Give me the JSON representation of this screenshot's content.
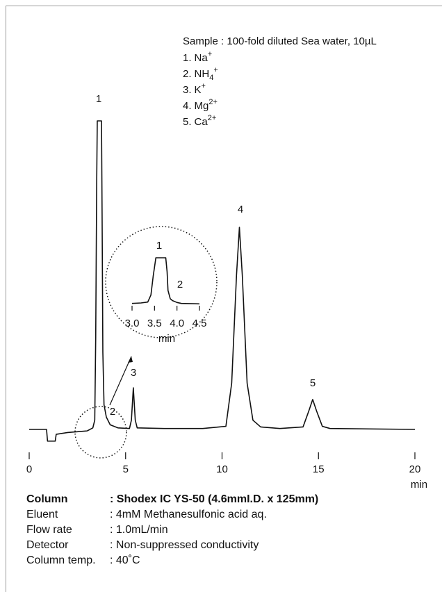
{
  "chart_data": [
    {
      "type": "line",
      "x": [
        0,
        0.9,
        0.95,
        1.35,
        1.4,
        2.0,
        3.0,
        3.3,
        3.4,
        3.45,
        3.5,
        3.53,
        3.75,
        3.78,
        3.82,
        3.88,
        4.0,
        4.2,
        4.6,
        5.2,
        5.3,
        5.4,
        5.5,
        5.6,
        7,
        9,
        10.2,
        10.5,
        10.75,
        10.9,
        11.05,
        11.3,
        11.6,
        12,
        13,
        14.2,
        14.5,
        14.7,
        14.9,
        15.2,
        15.6,
        20
      ],
      "series": [
        {
          "color": "#111111",
          "values": [
            0,
            0,
            -3.8,
            -3.8,
            -1.6,
            -1.0,
            -0.5,
            0.5,
            3,
            30,
            80,
            100,
            100,
            70,
            25,
            8,
            4,
            1.5,
            0.5,
            0.3,
            3,
            13.5,
            3,
            0.5,
            0.3,
            0.3,
            1,
            15,
            50,
            65.5,
            50,
            15,
            3,
            0.8,
            0.3,
            0.8,
            6,
            9.7,
            6,
            1,
            0.3,
            0
          ]
        }
      ],
      "xlim": [
        0,
        20
      ],
      "xticks": [
        0,
        5,
        10,
        15,
        20
      ],
      "ylim": [
        -5,
        105
      ],
      "xlabel": "min",
      "annotations": [
        "1",
        "2",
        "3",
        "4",
        "5"
      ]
    },
    {
      "type": "line",
      "x": [
        3.0,
        3.2,
        3.35,
        3.42,
        3.47,
        3.5,
        3.53,
        3.6,
        3.75,
        3.78,
        3.8,
        3.85,
        3.9,
        4.0,
        4.1,
        4.5
      ],
      "series": [
        {
          "color": "#111111",
          "values": [
            2,
            3,
            5,
            20,
            60,
            80,
            100,
            100,
            100,
            70,
            30,
            12,
            8,
            4,
            2,
            1
          ]
        }
      ],
      "xlim": [
        3.0,
        4.5
      ],
      "xticks": [
        {
          "value": 3,
          "label": "3.0"
        },
        3.5,
        {
          "value": 4,
          "label": "4.0"
        },
        4.5
      ],
      "ylim": [
        0,
        100
      ],
      "xlabel": "min",
      "annotations": [
        "1",
        "2"
      ]
    }
  ],
  "sample": "Sample : 100-fold diluted Sea water, 10µL",
  "ions": [
    {
      "index": "1.",
      "name": "Na",
      "sub": null,
      "sup": "+"
    },
    {
      "index": "2.",
      "name": "NH",
      "sub": "4",
      "sup": "+"
    },
    {
      "index": "3.",
      "name": "K",
      "sub": null,
      "sup": "+"
    },
    {
      "index": "4.",
      "name": "Mg",
      "sub": null,
      "sup": "2+"
    },
    {
      "index": "5.",
      "name": "Ca",
      "sub": null,
      "sup": "2+"
    }
  ],
  "conditions": [
    [
      "Column",
      ": Shodex IC YS-50 (4.6mmI.D. x 125mm)"
    ],
    [
      "Eluent",
      ": 4mM Methanesulfonic acid aq."
    ],
    [
      "Flow rate",
      ": 1.0mL/min"
    ],
    [
      "Detector",
      ": Non-suppressed conductivity"
    ],
    [
      "Column temp.",
      ": 40˚C"
    ]
  ]
}
